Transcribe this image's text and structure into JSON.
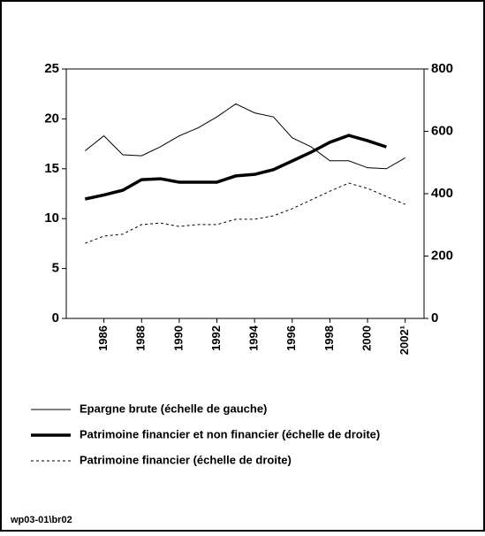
{
  "chart_data": {
    "type": "line",
    "x": [
      1985,
      1986,
      1987,
      1988,
      1989,
      1990,
      1991,
      1992,
      1993,
      1994,
      1995,
      1996,
      1997,
      1998,
      1999,
      2000,
      2001,
      2002
    ],
    "xlim": [
      1984,
      2003
    ],
    "xticks": [
      1986,
      1988,
      1990,
      1992,
      1994,
      1996,
      1998,
      2000,
      {
        "value": 2002,
        "label": "2002¹"
      }
    ],
    "ylim": [
      0,
      25
    ],
    "yticks": [
      0,
      5,
      10,
      15,
      20,
      25
    ],
    "y2lim": [
      0,
      800
    ],
    "y2ticks": [
      0,
      200,
      400,
      600,
      800
    ],
    "grid": false,
    "series": [
      {
        "name": "Epargne brute (échelle de gauche)",
        "color": "#000000",
        "style": "thin",
        "values": [
          16.8,
          18.3,
          16.4,
          16.3,
          17.2,
          18.3,
          19.1,
          20.2,
          21.5,
          20.6,
          20.2,
          18.1,
          17.2,
          15.8,
          15.8,
          15.1,
          15.0,
          16.1
        ]
      },
      {
        "name": "Patrimoine financier et non financier (échelle de droite)",
        "color": "#000000",
        "style": "thick",
        "axis": "y2",
        "values": [
          383,
          396,
          411,
          445,
          448,
          437,
          437,
          437,
          457,
          462,
          477,
          505,
          533,
          565,
          587,
          570,
          550,
          null
        ]
      },
      {
        "name": "Patrimoine financier (échelle de droite)",
        "color": "#000000",
        "style": "dashed",
        "axis": "y2",
        "values": [
          241,
          264,
          270,
          301,
          306,
          295,
          301,
          301,
          318,
          318,
          329,
          352,
          380,
          408,
          434,
          417,
          391,
          366
        ]
      }
    ],
    "footnote": "wp03-01\\br02"
  }
}
